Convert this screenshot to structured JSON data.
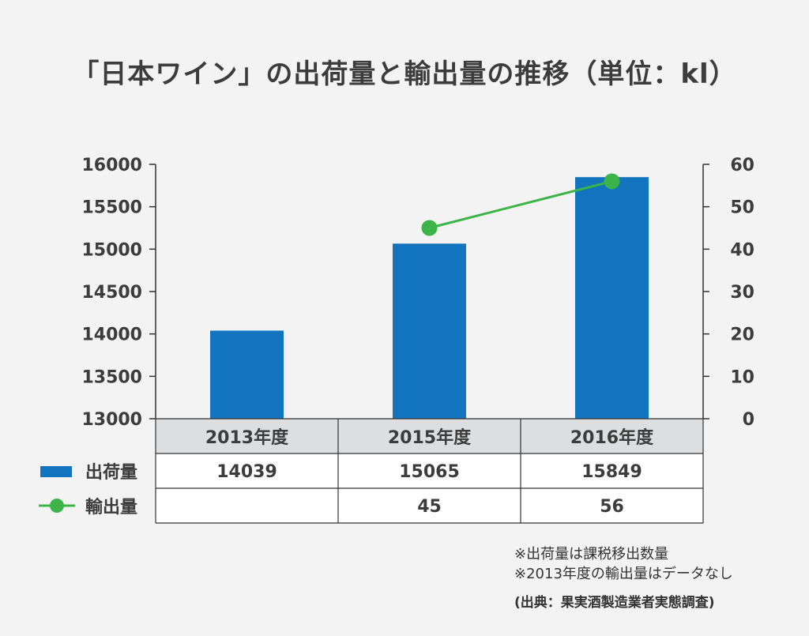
{
  "chart_data": {
    "type": "bar",
    "title": "「日本ワイン」の出荷量と輸出量の推移（単位：kl）",
    "categories": [
      "2013年度",
      "2015年度",
      "2016年度"
    ],
    "series": [
      {
        "name": "出荷量",
        "kind": "bar",
        "axis": "left",
        "color": "#1273be",
        "values": [
          14039,
          15065,
          15849
        ]
      },
      {
        "name": "輸出量",
        "kind": "line",
        "axis": "right",
        "color": "#3cb44a",
        "values": [
          null,
          45,
          56
        ]
      }
    ],
    "y_left": {
      "min": 13000,
      "max": 16000,
      "ticks": [
        "16000",
        "15500",
        "15000",
        "14500",
        "14000",
        "13500",
        "13000"
      ]
    },
    "y_right": {
      "min": 0,
      "max": 60,
      "ticks": [
        "60",
        "50",
        "40",
        "30",
        "20",
        "10",
        "0"
      ]
    },
    "table": {
      "rows": [
        {
          "label": "出荷量",
          "cells": [
            "14039",
            "15065",
            "15849"
          ]
        },
        {
          "label": "輸出量",
          "cells": [
            "",
            "45",
            "56"
          ]
        }
      ]
    },
    "notes": [
      "※出荷量は課税移出数量",
      "※2013年度の輸出量はデータなし"
    ],
    "source": "(出典：果実酒製造業者実態調査)"
  }
}
